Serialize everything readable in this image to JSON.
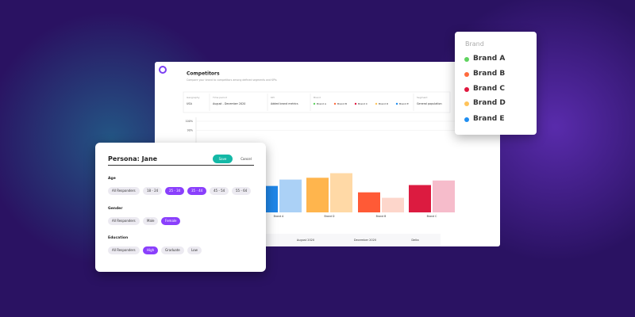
{
  "main": {
    "title": "Competitors",
    "subtitle": "Compare your brand to competitors among defined segments and KPIs",
    "filters": [
      {
        "label": "Geography",
        "value": "USA"
      },
      {
        "label": "Time period",
        "value": "August - December 2020"
      },
      {
        "label": "KPI",
        "value": "Added brand metrics"
      },
      {
        "label": "Brand"
      },
      {
        "label": "Segment",
        "value": "General population"
      }
    ],
    "chart": {
      "ylim": [
        0,
        100
      ],
      "yticks": [
        {
          "value": 100,
          "label": "100%"
        },
        {
          "value": 90,
          "label": "90%"
        }
      ],
      "groups": [
        {
          "label": "Brand A",
          "color": "#1f86e8",
          "light": "#abd1f6",
          "values": [
            29,
            36
          ]
        },
        {
          "label": "Brand D",
          "color": "#ffb54d",
          "light": "#ffd9a6",
          "values": [
            38,
            43
          ]
        },
        {
          "label": "Brand B",
          "color": "#ff5a36",
          "light": "#fdd6cb",
          "values": [
            22,
            16
          ]
        },
        {
          "label": "Brand C",
          "color": "#dc1b40",
          "light": "#f6bccb",
          "values": [
            30,
            35
          ]
        }
      ]
    },
    "table": [
      "August 2020",
      "December 2020",
      "Delta"
    ]
  },
  "persona": {
    "title": "Persona: Jane",
    "save": "Save",
    "cancel": "Cancel",
    "sections": [
      {
        "label": "Age",
        "options": [
          "All Responders",
          "18 - 24",
          "25 - 34",
          "35 - 44",
          "45 - 54",
          "55 - 64"
        ],
        "selected": [
          2,
          3
        ]
      },
      {
        "label": "Gender",
        "options": [
          "All Responders",
          "Male",
          "Female"
        ],
        "selected": [
          2
        ]
      },
      {
        "label": "Education",
        "options": [
          "All Responders",
          "High",
          "Graduate",
          "Low"
        ],
        "selected": [
          1
        ]
      }
    ]
  },
  "brand_popup": {
    "title": "Brand",
    "items": [
      {
        "name": "Brand A",
        "color": "#5fd35f"
      },
      {
        "name": "Brand B",
        "color": "#ff6a3d"
      },
      {
        "name": "Brand C",
        "color": "#e0173e"
      },
      {
        "name": "Brand D",
        "color": "#ffc35a"
      },
      {
        "name": "Brand E",
        "color": "#1f8ef1"
      }
    ]
  }
}
